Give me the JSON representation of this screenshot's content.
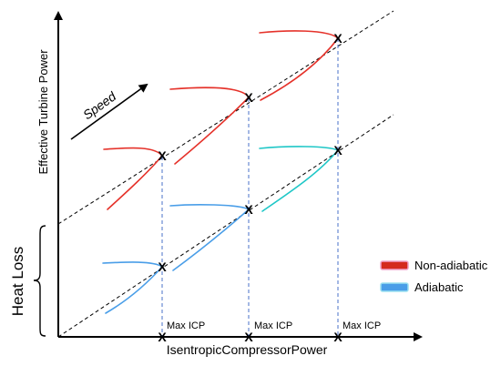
{
  "diagram": {
    "y_axis_label": "Effective Turbine Power",
    "x_axis_label": "IsentropicCompressorPower",
    "speed_label": "Speed",
    "heat_loss_label": "Heat Loss",
    "max_icp_labels": [
      "Max ICP",
      "Max ICP",
      "Max ICP"
    ],
    "max_point_marker": "X",
    "legend": [
      {
        "label": "Non-adiabatic",
        "color": "#d42a1e"
      },
      {
        "label": "Adiabatic",
        "color": "#4a9ee8"
      }
    ],
    "colors": {
      "non_adiabatic": "#e5322a",
      "adiabatic": "#4a9ee8",
      "adiabatic_tail": "#1fc7c7",
      "max_icp_line": "#4a70c8"
    }
  }
}
